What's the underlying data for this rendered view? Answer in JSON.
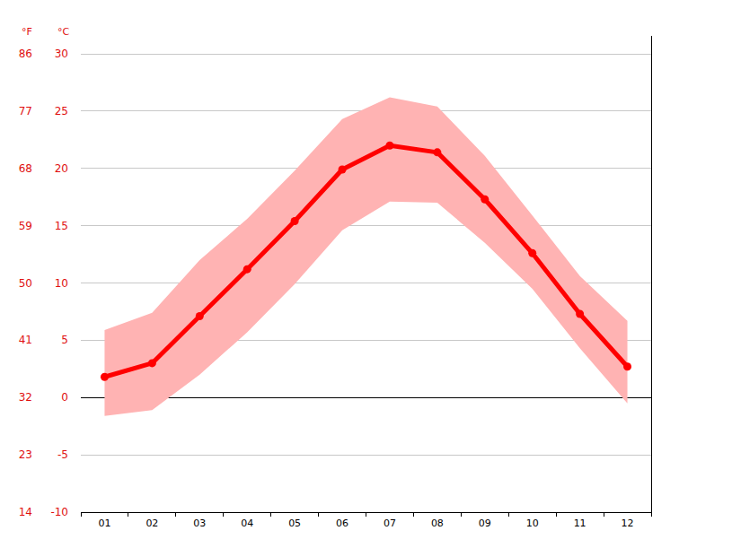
{
  "chart_data": {
    "type": "line",
    "categories": [
      "01",
      "02",
      "03",
      "04",
      "05",
      "06",
      "07",
      "08",
      "09",
      "10",
      "11",
      "12"
    ],
    "ylabel": "°C",
    "y2label": "°F",
    "ylim": [
      -10,
      30
    ],
    "yticks": [
      -10,
      -5,
      0,
      5,
      10,
      15,
      20,
      25,
      30
    ],
    "y2lim": [
      14,
      86
    ],
    "y2ticks": [
      14,
      23,
      32,
      41,
      50,
      59,
      68,
      77,
      86
    ],
    "grid": true,
    "series": [
      {
        "type": "band",
        "color": "#ffb3b3",
        "low": [
          -1.6,
          -1.1,
          2.0,
          5.7,
          9.9,
          14.6,
          17.1,
          17.0,
          13.5,
          9.5,
          4.3,
          -0.5
        ],
        "high": [
          5.9,
          7.4,
          12.0,
          15.6,
          19.8,
          24.3,
          26.2,
          25.4,
          21.1,
          15.9,
          10.6,
          6.7
        ]
      },
      {
        "type": "line",
        "color": "#ff0000",
        "marker": "circle",
        "values": [
          1.8,
          3.0,
          7.1,
          11.2,
          15.4,
          19.9,
          22.0,
          21.4,
          17.3,
          12.6,
          7.3,
          2.7
        ]
      }
    ]
  }
}
